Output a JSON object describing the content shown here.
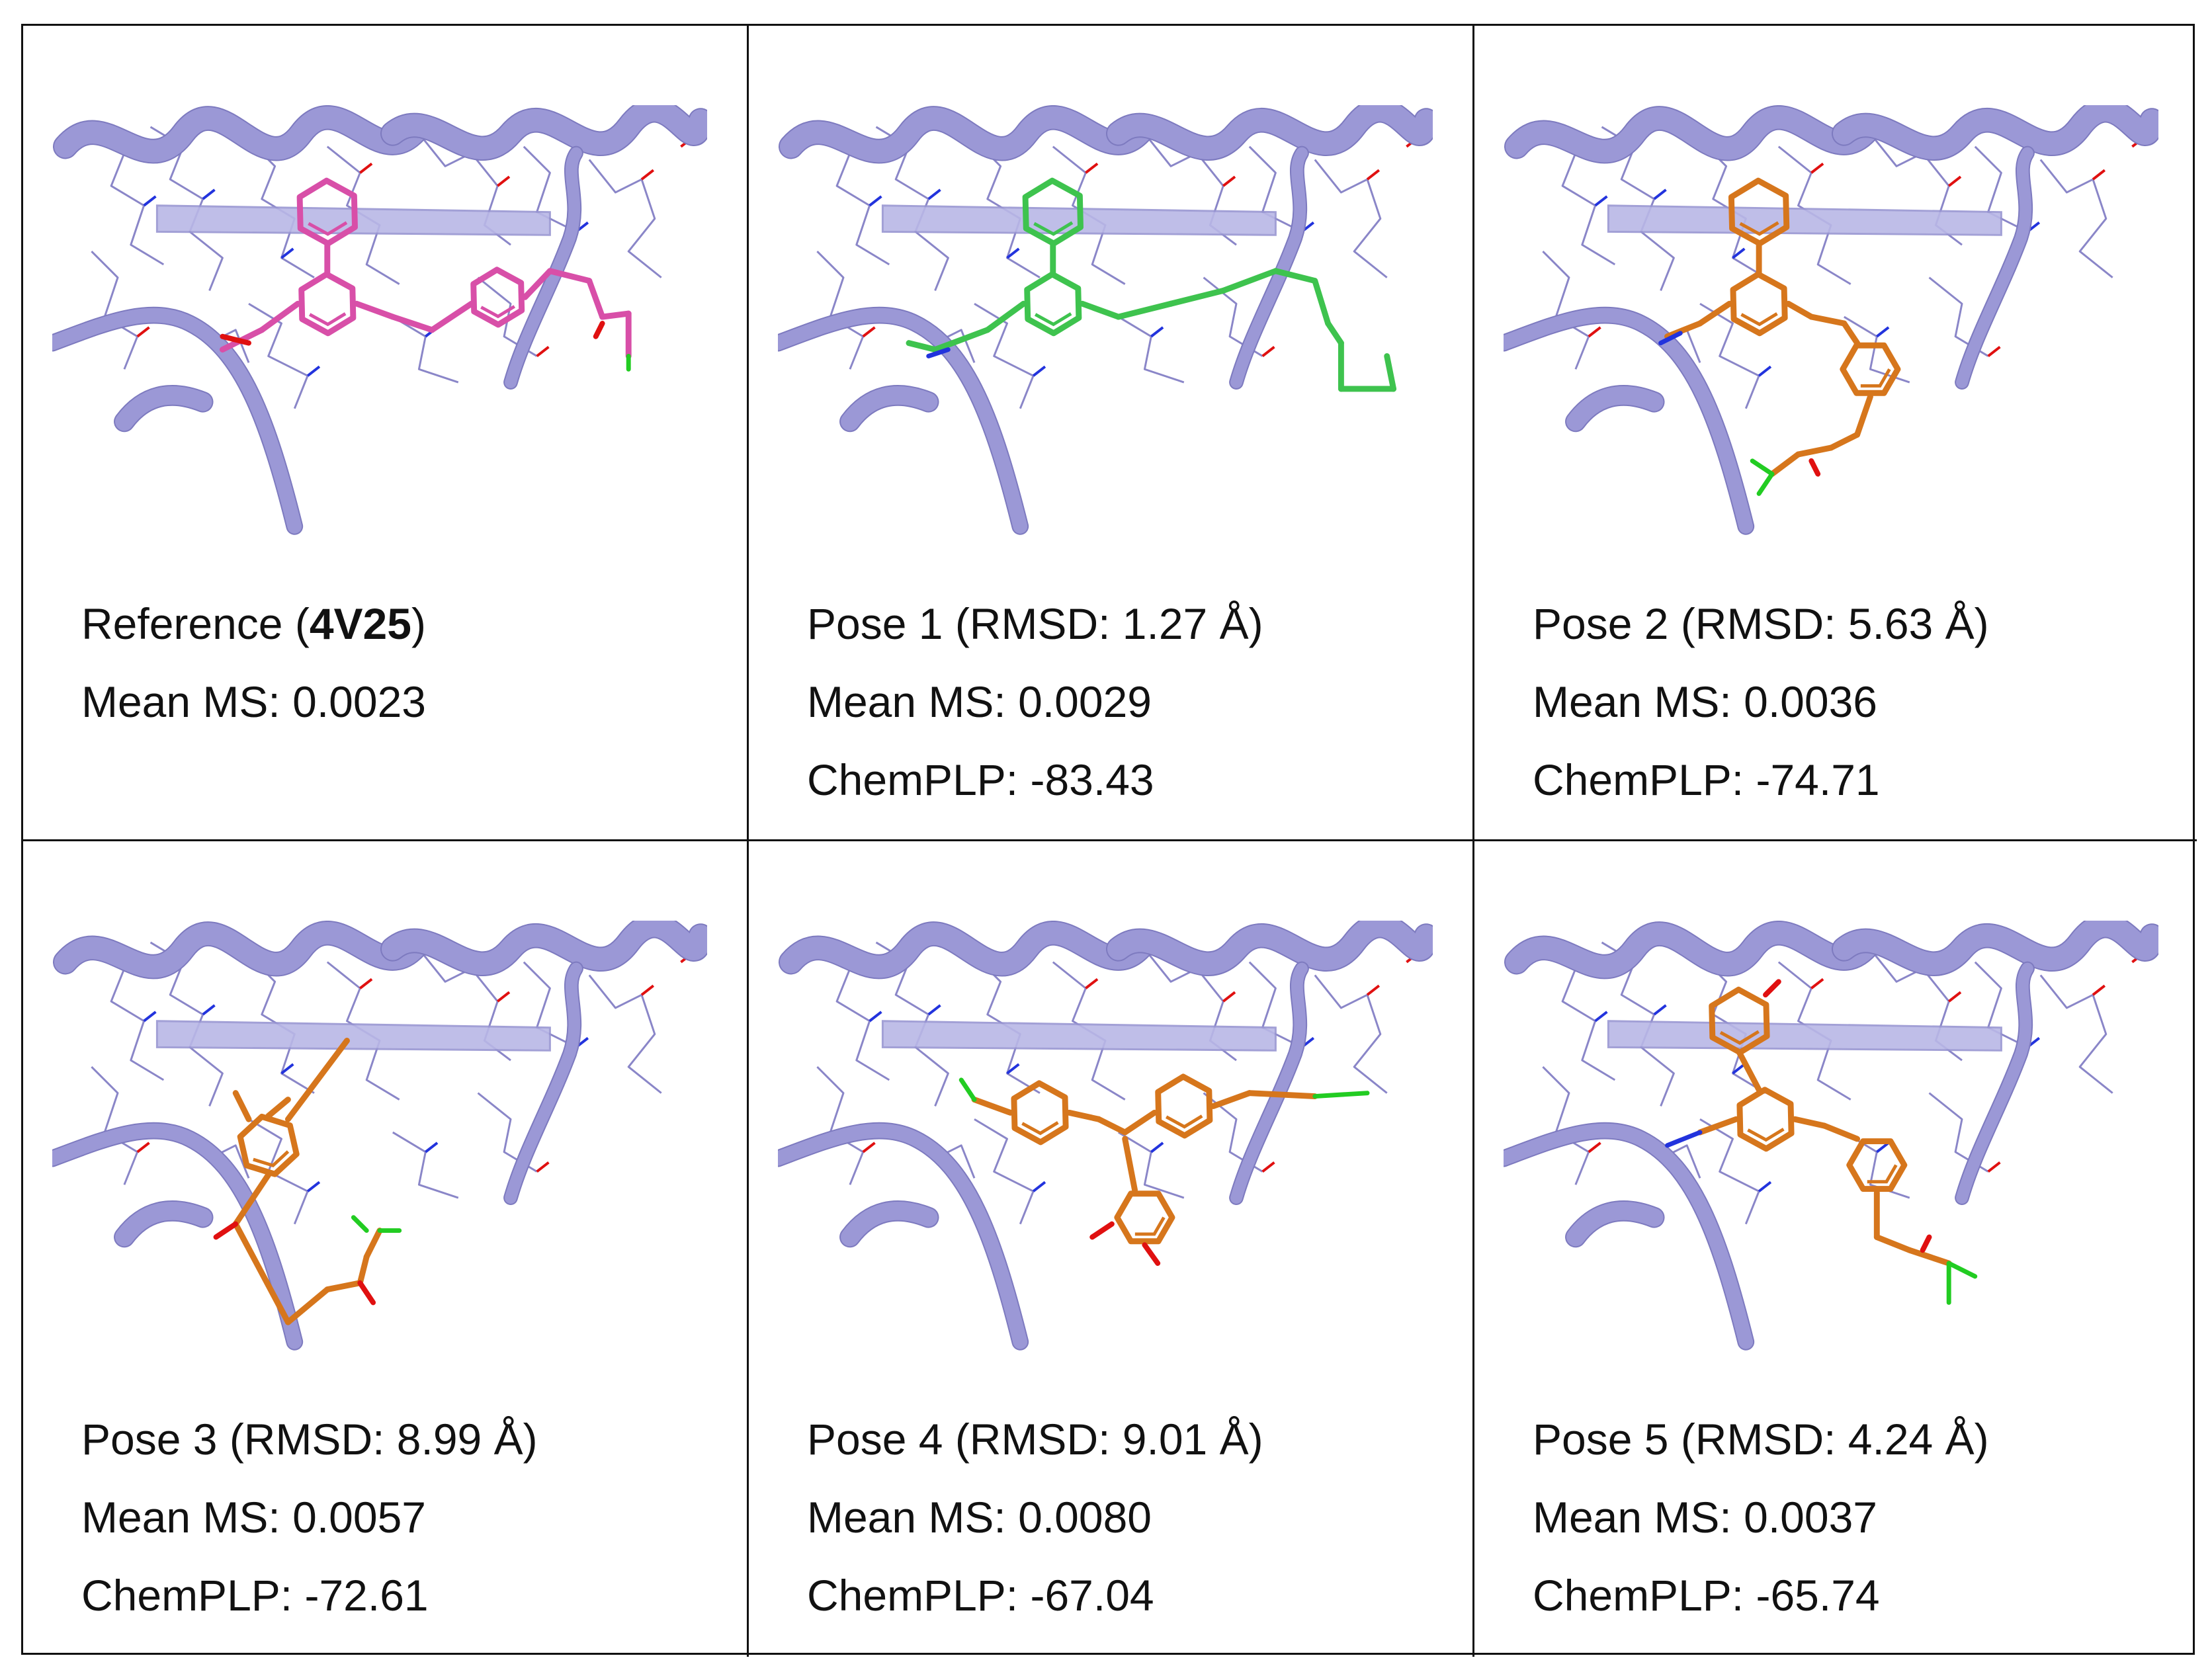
{
  "panels": [
    {
      "pose_label": "Reference (",
      "pdb_id": "4V25",
      "pose_suffix": ")",
      "mean_ms": "Mean MS: 0.0023",
      "chemplp": "",
      "ligand_color": "#d84fa8",
      "pose_variant": "reference"
    },
    {
      "pose_label": "Pose 1 (RMSD: 1.27 Å)",
      "mean_ms": "Mean MS: 0.0029",
      "chemplp": "ChemPLP: -83.43",
      "ligand_color": "#3ec34e",
      "pose_variant": "pose1"
    },
    {
      "pose_label": "Pose 2 (RMSD: 5.63 Å)",
      "mean_ms": "Mean MS: 0.0036",
      "chemplp": "ChemPLP: -74.71",
      "ligand_color": "#d6761c",
      "pose_variant": "pose2"
    },
    {
      "pose_label": "Pose 3 (RMSD: 8.99 Å)",
      "mean_ms": "Mean MS: 0.0057",
      "chemplp": "ChemPLP: -72.61",
      "ligand_color": "#d6761c",
      "pose_variant": "pose3"
    },
    {
      "pose_label": "Pose 4 (RMSD: 9.01 Å)",
      "mean_ms": "Mean MS: 0.0080",
      "chemplp": "ChemPLP: -67.04",
      "ligand_color": "#d6761c",
      "pose_variant": "pose4"
    },
    {
      "pose_label": "Pose 5 (RMSD: 4.24 Å)",
      "mean_ms": "Mean MS: 0.0037",
      "chemplp": "ChemPLP: -65.74",
      "ligand_color": "#d6761c",
      "pose_variant": "pose5"
    }
  ],
  "colors": {
    "protein_ribbon": "#9b98d6",
    "protein_wire": "#8a86c8",
    "nitrogen": "#2233dd",
    "oxygen": "#e01010",
    "halogen": "#22cc22",
    "hydrogen": "#cccccc"
  }
}
